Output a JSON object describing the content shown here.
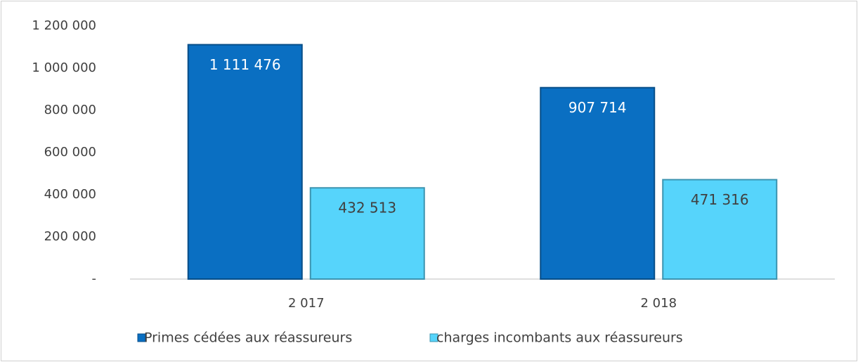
{
  "chart_data": {
    "type": "bar",
    "categories": [
      "2 017",
      "2 018"
    ],
    "series": [
      {
        "name": "Primes cédées aux réassureurs",
        "color": "#0a6fc2",
        "values": [
          1111476,
          907714
        ],
        "value_labels": [
          "1 111 476",
          "907 714"
        ]
      },
      {
        "name": "charges incombants aux réassureurs",
        "color": "#56d4fb",
        "values": [
          432513,
          471316
        ],
        "value_labels": [
          "432 513",
          "471 316"
        ]
      }
    ],
    "ylim": [
      0,
      1200000
    ],
    "yticks": [
      {
        "value": 0,
        "label": "-"
      },
      {
        "value": 200000,
        "label": "200 000"
      },
      {
        "value": 400000,
        "label": "400 000"
      },
      {
        "value": 600000,
        "label": "600 000"
      },
      {
        "value": 800000,
        "label": "800 000"
      },
      {
        "value": 1000000,
        "label": "1 000 000"
      },
      {
        "value": 1200000,
        "label": "1 200 000"
      }
    ],
    "grid": false,
    "legend": "bottom"
  }
}
